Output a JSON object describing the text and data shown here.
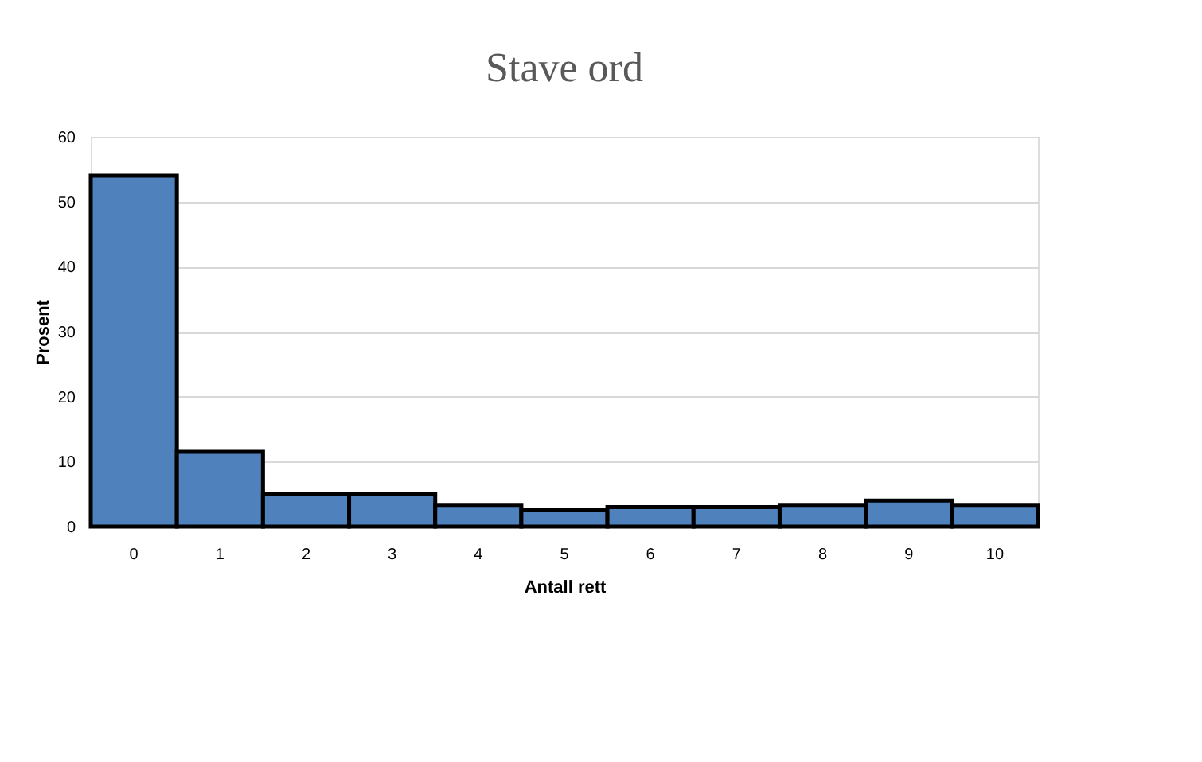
{
  "chart_data": {
    "type": "bar",
    "title": "Stave ord",
    "xlabel": "Antall rett",
    "ylabel": "Prosent",
    "categories": [
      "0",
      "1",
      "2",
      "3",
      "4",
      "5",
      "6",
      "7",
      "8",
      "9",
      "10"
    ],
    "values": [
      54,
      11.5,
      5,
      5,
      3.2,
      2.5,
      3,
      3,
      3.2,
      4,
      3.2
    ],
    "color": "#4f81bd",
    "ylim": [
      0,
      60
    ],
    "yticks": [
      0,
      10,
      20,
      30,
      40,
      50,
      60
    ],
    "grid": "y"
  }
}
